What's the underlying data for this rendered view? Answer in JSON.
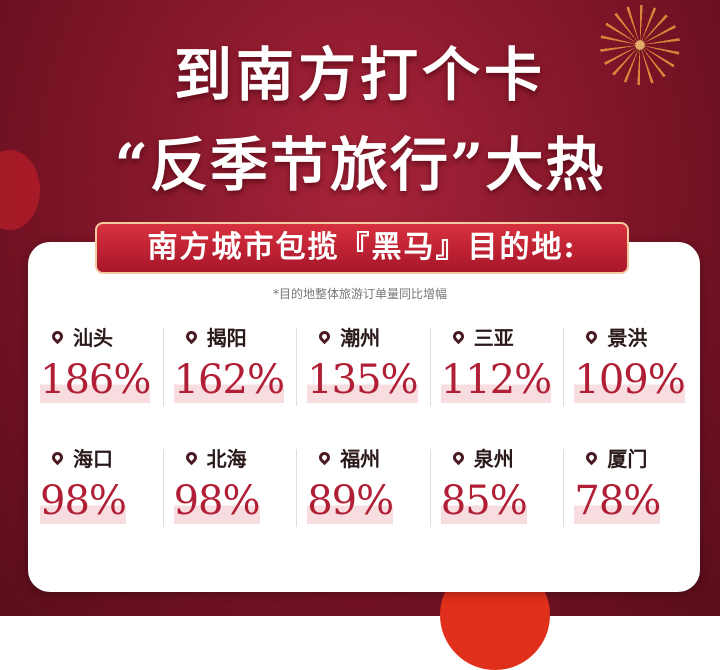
{
  "title": {
    "line1": "到南方打个卡",
    "line2": "“反季节旅行”大热"
  },
  "banner": "南方城市包揽『黑马』目的地:",
  "note": "*目的地整体旅游订单量同比增幅",
  "cities": [
    {
      "name": "汕头",
      "value": "186%"
    },
    {
      "name": "揭阳",
      "value": "162%"
    },
    {
      "name": "潮州",
      "value": "135%"
    },
    {
      "name": "三亚",
      "value": "112%"
    },
    {
      "name": "景洪",
      "value": "109%"
    },
    {
      "name": "海口",
      "value": "98%"
    },
    {
      "name": "北海",
      "value": "98%"
    },
    {
      "name": "福州",
      "value": "89%"
    },
    {
      "name": "泉州",
      "value": "85%"
    },
    {
      "name": "厦门",
      "value": "78%"
    }
  ],
  "colors": {
    "background": "#7c1427",
    "accent": "#b01f35",
    "card": "#ffffff"
  },
  "icons": {
    "city": "location-pin-icon"
  }
}
